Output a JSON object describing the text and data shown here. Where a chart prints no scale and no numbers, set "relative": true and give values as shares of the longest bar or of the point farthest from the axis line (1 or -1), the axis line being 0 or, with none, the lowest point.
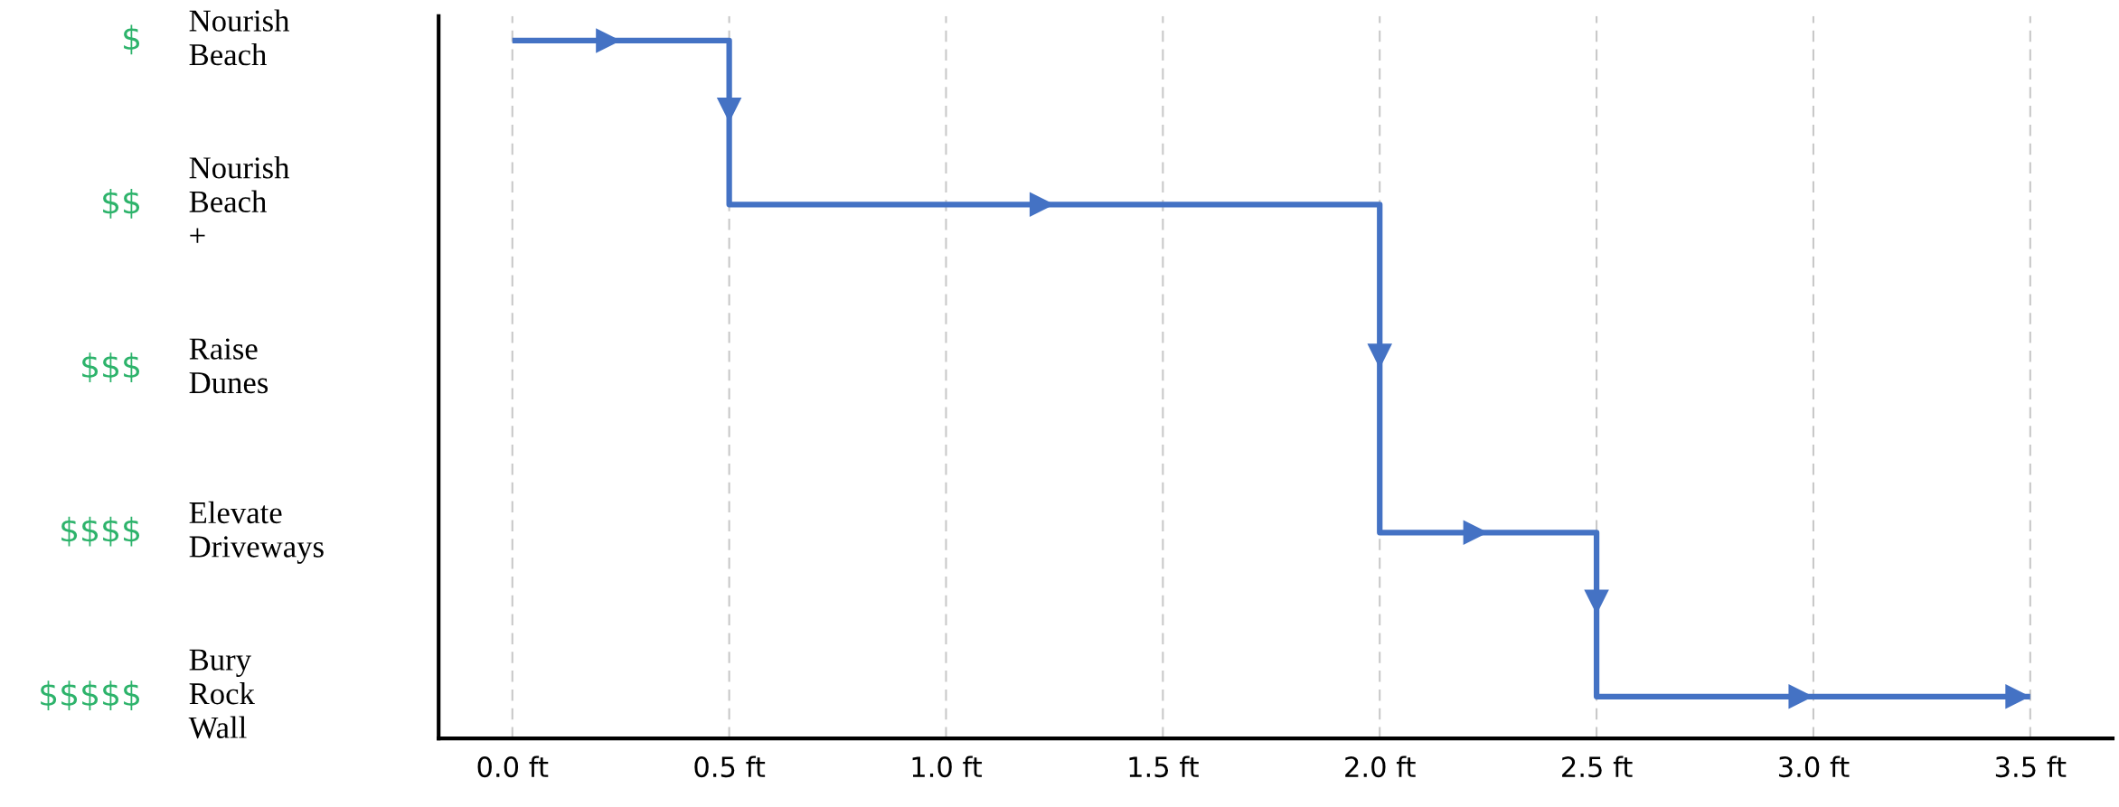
{
  "chart_data": {
    "type": "step",
    "relative": true,
    "series": [
      {
        "color": "#4472c4",
        "x": [
          0.0,
          0.5,
          0.5,
          2.0,
          2.0,
          2.5,
          2.5,
          3.5
        ],
        "values": [
          1.0,
          1.0,
          0.765,
          0.765,
          0.295,
          0.295,
          0.06,
          0.06
        ]
      }
    ],
    "xlim": [
      -0.17,
      3.69
    ],
    "xticks": [
      {
        "value": 0.0,
        "label": "0.0 ft"
      },
      {
        "value": 0.5,
        "label": "0.5 ft"
      },
      {
        "value": 1.0,
        "label": "1.0 ft"
      },
      {
        "value": 1.5,
        "label": "1.5 ft"
      },
      {
        "value": 2.0,
        "label": "2.0 ft"
      },
      {
        "value": 2.5,
        "label": "2.5 ft"
      },
      {
        "value": 3.0,
        "label": "3.0 ft"
      },
      {
        "value": 3.5,
        "label": "3.5 ft"
      }
    ],
    "annotations": [
      "$",
      "Nourish Beach",
      "$$",
      "Nourish Beach +",
      "$$$",
      "Raise Dunes",
      "$$$$",
      "Elevate Driveways",
      "$$$$$",
      "Bury Rock Wall"
    ],
    "grid": "x",
    "line_style": "solid"
  }
}
